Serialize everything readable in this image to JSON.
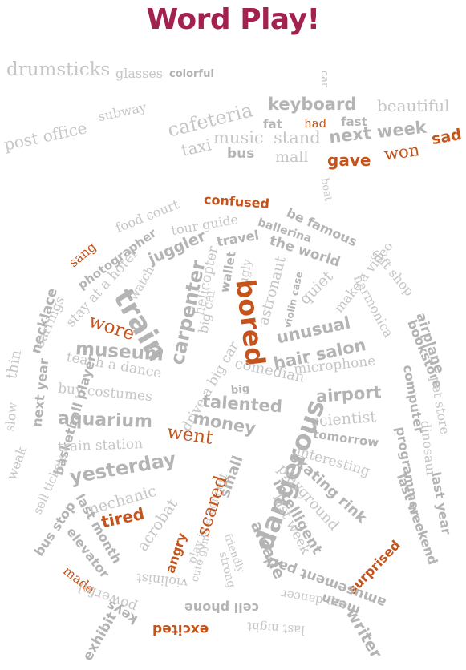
{
  "title": "Word Play!",
  "colors": {
    "title": "#a3214f",
    "gray": "#c6c6c6",
    "dark_gray": "#b4b4b4",
    "orange": "#c4541b"
  },
  "words": [
    "drumsticks",
    "glasses",
    "colorful",
    "post office",
    "subway",
    "car",
    "keyboard",
    "beautiful",
    "cafeteria",
    "fat",
    "had",
    "fast",
    "music",
    "stand",
    "next week",
    "sad",
    "taxi",
    "bus",
    "mall",
    "gave",
    "won",
    "boat",
    "confused",
    "food court",
    "be famous",
    "tour guide",
    "ballerina",
    "sang",
    "photographer",
    "juggler",
    "travel",
    "the world",
    "gift shop",
    "stay at a hotel",
    "watch",
    "make a video",
    "necklace",
    "helicopter",
    "wallet",
    "ugly",
    "astronaut",
    "violin case",
    "quiet",
    "harmonica",
    "airplane",
    "earrings",
    "wore",
    "train",
    "carpenter",
    "bored",
    "unusual",
    "bookstore",
    "museum",
    "big car",
    "hair salon",
    "pet store",
    "thin",
    "next year",
    "teach a dance",
    "microphone",
    "comedian",
    "buy costumes",
    "drive a big car",
    "big",
    "airport",
    "computer",
    "dinosaur",
    "slow",
    "basketball player",
    "talented",
    "scientist",
    "aquarium",
    "money",
    "programmer",
    "went",
    "tomorrow",
    "weak",
    "sell tickets",
    "train station",
    "dangerous",
    "interesting",
    "last year",
    "yesterday",
    "skating rink",
    "small",
    "playground",
    "bus stop",
    "mechanic",
    "intelligent",
    "last weekend",
    "play in a concert",
    "scared",
    "last week",
    "tired",
    "acrobat",
    "arcade",
    "last month",
    "angry",
    "friendly",
    "elevator",
    "cute gym",
    "surprised",
    "amusement park",
    "made",
    "strong",
    "violinist",
    "powerful",
    "tap dancer",
    "mean",
    "cell phone",
    "keys",
    "last night",
    "writer",
    "exhibit",
    "excited"
  ]
}
